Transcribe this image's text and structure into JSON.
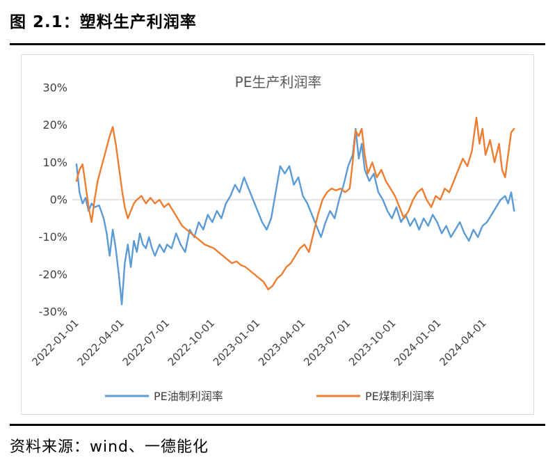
{
  "page": {
    "title": "图 2.1：塑料生产利润率",
    "source": "资料来源：wind、一德能化"
  },
  "chart_data": {
    "type": "line",
    "title": "PE生产利润率",
    "xlabel": "",
    "ylabel": "",
    "ylim": [
      -30,
      30
    ],
    "y_ticks": [
      30,
      20,
      10,
      0,
      -10,
      -20,
      -30
    ],
    "y_tick_format": "percent",
    "grid": "zero-line-only",
    "legend_position": "bottom",
    "x_unit": "months since 2022-01-01",
    "x_range_months": [
      0,
      29
    ],
    "x_ticks": [
      {
        "label": "2022-01-01",
        "month": 0
      },
      {
        "label": "2022-04-01",
        "month": 3
      },
      {
        "label": "2022-07-01",
        "month": 6
      },
      {
        "label": "2022-10-01",
        "month": 9
      },
      {
        "label": "2023-01-01",
        "month": 12
      },
      {
        "label": "2023-04-01",
        "month": 15
      },
      {
        "label": "2023-07-01",
        "month": 18
      },
      {
        "label": "2023-10-01",
        "month": 21
      },
      {
        "label": "2024-01-01",
        "month": 24
      },
      {
        "label": "2024-04-01",
        "month": 27
      }
    ],
    "series": [
      {
        "name": "PE油制利润率",
        "color": "#5B9BD5",
        "points": [
          [
            0,
            9.5
          ],
          [
            0.2,
            2
          ],
          [
            0.4,
            -1
          ],
          [
            0.6,
            0.5
          ],
          [
            0.8,
            -3
          ],
          [
            1,
            -1
          ],
          [
            1.2,
            -2
          ],
          [
            1.5,
            -1.5
          ],
          [
            1.8,
            -5
          ],
          [
            2,
            -9
          ],
          [
            2.2,
            -15
          ],
          [
            2.4,
            -8
          ],
          [
            2.6,
            -13
          ],
          [
            2.8,
            -20
          ],
          [
            3,
            -28
          ],
          [
            3.2,
            -17
          ],
          [
            3.4,
            -12
          ],
          [
            3.6,
            -18
          ],
          [
            3.8,
            -11
          ],
          [
            4,
            -14
          ],
          [
            4.2,
            -9
          ],
          [
            4.4,
            -12
          ],
          [
            4.6,
            -13
          ],
          [
            4.8,
            -10
          ],
          [
            5,
            -13
          ],
          [
            5.2,
            -15
          ],
          [
            5.5,
            -12
          ],
          [
            5.8,
            -14
          ],
          [
            6,
            -12
          ],
          [
            6.3,
            -13
          ],
          [
            6.6,
            -9
          ],
          [
            6.9,
            -12
          ],
          [
            7.2,
            -14
          ],
          [
            7.5,
            -8
          ],
          [
            7.8,
            -10
          ],
          [
            8.1,
            -6
          ],
          [
            8.4,
            -8
          ],
          [
            8.7,
            -4
          ],
          [
            9,
            -6
          ],
          [
            9.3,
            -3
          ],
          [
            9.6,
            -5
          ],
          [
            9.9,
            -1
          ],
          [
            10.2,
            1
          ],
          [
            10.5,
            4
          ],
          [
            10.8,
            2
          ],
          [
            11.1,
            6
          ],
          [
            11.4,
            3
          ],
          [
            11.7,
            0
          ],
          [
            12,
            -3
          ],
          [
            12.3,
            -6
          ],
          [
            12.6,
            -8
          ],
          [
            12.9,
            -5
          ],
          [
            13.2,
            2
          ],
          [
            13.5,
            9
          ],
          [
            13.8,
            7
          ],
          [
            14.1,
            9
          ],
          [
            14.4,
            4
          ],
          [
            14.7,
            6
          ],
          [
            15,
            1
          ],
          [
            15.3,
            -1
          ],
          [
            15.6,
            -4
          ],
          [
            15.9,
            -7
          ],
          [
            16.2,
            -10
          ],
          [
            16.5,
            -6
          ],
          [
            16.8,
            -3
          ],
          [
            17.1,
            -5
          ],
          [
            17.4,
            0
          ],
          [
            17.7,
            4
          ],
          [
            18,
            9
          ],
          [
            18.3,
            12
          ],
          [
            18.5,
            19
          ],
          [
            18.7,
            11
          ],
          [
            18.9,
            15
          ],
          [
            19.1,
            8
          ],
          [
            19.4,
            5
          ],
          [
            19.7,
            7
          ],
          [
            20,
            2
          ],
          [
            20.3,
            0
          ],
          [
            20.6,
            -3
          ],
          [
            20.9,
            -5
          ],
          [
            21.2,
            -2
          ],
          [
            21.5,
            -6
          ],
          [
            21.8,
            -4
          ],
          [
            22.1,
            -7
          ],
          [
            22.4,
            -5
          ],
          [
            22.7,
            -8
          ],
          [
            23,
            -5
          ],
          [
            23.3,
            -7
          ],
          [
            23.6,
            -4
          ],
          [
            23.9,
            -6
          ],
          [
            24.2,
            -9
          ],
          [
            24.5,
            -7
          ],
          [
            24.8,
            -10
          ],
          [
            25.1,
            -8
          ],
          [
            25.4,
            -6
          ],
          [
            25.7,
            -9
          ],
          [
            26,
            -11
          ],
          [
            26.3,
            -8
          ],
          [
            26.6,
            -10
          ],
          [
            26.9,
            -7
          ],
          [
            27.2,
            -6
          ],
          [
            27.5,
            -4
          ],
          [
            27.8,
            -2
          ],
          [
            28.1,
            0
          ],
          [
            28.4,
            1
          ],
          [
            28.6,
            -1
          ],
          [
            28.8,
            2
          ],
          [
            29,
            -3
          ]
        ]
      },
      {
        "name": "PE煤制利润率",
        "color": "#ED7D31",
        "points": [
          [
            0,
            5
          ],
          [
            0.2,
            8
          ],
          [
            0.4,
            9.5
          ],
          [
            0.6,
            4
          ],
          [
            0.8,
            -2
          ],
          [
            1,
            -6
          ],
          [
            1.2,
            0
          ],
          [
            1.4,
            5
          ],
          [
            1.6,
            8
          ],
          [
            1.8,
            11
          ],
          [
            2,
            14
          ],
          [
            2.2,
            17
          ],
          [
            2.4,
            19.5
          ],
          [
            2.6,
            15
          ],
          [
            2.8,
            9
          ],
          [
            3,
            3
          ],
          [
            3.2,
            -2
          ],
          [
            3.4,
            -5
          ],
          [
            3.6,
            -3
          ],
          [
            3.8,
            -1
          ],
          [
            4,
            0
          ],
          [
            4.3,
            1
          ],
          [
            4.6,
            -1
          ],
          [
            4.9,
            0.5
          ],
          [
            5.2,
            -1
          ],
          [
            5.5,
            0
          ],
          [
            5.8,
            -2
          ],
          [
            6.1,
            -1
          ],
          [
            6.4,
            -3
          ],
          [
            6.7,
            -5
          ],
          [
            7,
            -7
          ],
          [
            7.3,
            -8
          ],
          [
            7.6,
            -9
          ],
          [
            7.9,
            -10
          ],
          [
            8.2,
            -11
          ],
          [
            8.5,
            -12
          ],
          [
            8.8,
            -12.5
          ],
          [
            9.1,
            -13
          ],
          [
            9.4,
            -14
          ],
          [
            9.7,
            -15
          ],
          [
            10,
            -16
          ],
          [
            10.3,
            -17
          ],
          [
            10.6,
            -16.5
          ],
          [
            10.9,
            -17.5
          ],
          [
            11.2,
            -18
          ],
          [
            11.5,
            -19
          ],
          [
            11.8,
            -20
          ],
          [
            12.1,
            -21
          ],
          [
            12.4,
            -22
          ],
          [
            12.7,
            -24
          ],
          [
            13,
            -23
          ],
          [
            13.3,
            -21
          ],
          [
            13.6,
            -20
          ],
          [
            13.9,
            -18
          ],
          [
            14.2,
            -17
          ],
          [
            14.5,
            -15
          ],
          [
            14.8,
            -13
          ],
          [
            15.1,
            -12
          ],
          [
            15.4,
            -14
          ],
          [
            15.7,
            -9
          ],
          [
            16,
            -4
          ],
          [
            16.3,
            0
          ],
          [
            16.6,
            2
          ],
          [
            16.9,
            3
          ],
          [
            17.2,
            2.5
          ],
          [
            17.5,
            3
          ],
          [
            17.8,
            2
          ],
          [
            18.1,
            3
          ],
          [
            18.3,
            10
          ],
          [
            18.5,
            18.5
          ],
          [
            18.7,
            17
          ],
          [
            18.9,
            19
          ],
          [
            19.1,
            12
          ],
          [
            19.3,
            7
          ],
          [
            19.6,
            10
          ],
          [
            19.9,
            6
          ],
          [
            20.2,
            8
          ],
          [
            20.5,
            5
          ],
          [
            20.8,
            3
          ],
          [
            21.1,
            1
          ],
          [
            21.4,
            -2
          ],
          [
            21.7,
            -5
          ],
          [
            22,
            -3
          ],
          [
            22.3,
            0
          ],
          [
            22.6,
            2
          ],
          [
            22.9,
            3
          ],
          [
            23.2,
            0
          ],
          [
            23.5,
            -2
          ],
          [
            23.8,
            1
          ],
          [
            24.1,
            0
          ],
          [
            24.4,
            3
          ],
          [
            24.7,
            2
          ],
          [
            25,
            5
          ],
          [
            25.3,
            8
          ],
          [
            25.6,
            11
          ],
          [
            25.9,
            9
          ],
          [
            26.2,
            13
          ],
          [
            26.5,
            22
          ],
          [
            26.7,
            15
          ],
          [
            26.9,
            19
          ],
          [
            27.1,
            12
          ],
          [
            27.4,
            16
          ],
          [
            27.7,
            10
          ],
          [
            28,
            15
          ],
          [
            28.2,
            8
          ],
          [
            28.4,
            6
          ],
          [
            28.6,
            12
          ],
          [
            28.8,
            18
          ],
          [
            29,
            19
          ]
        ]
      }
    ]
  }
}
